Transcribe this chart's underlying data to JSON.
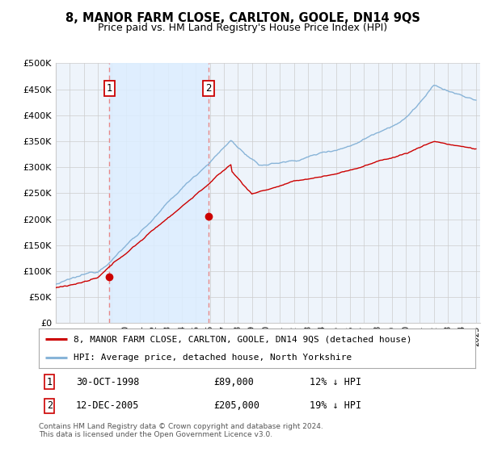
{
  "title": "8, MANOR FARM CLOSE, CARLTON, GOOLE, DN14 9QS",
  "subtitle": "Price paid vs. HM Land Registry's House Price Index (HPI)",
  "property_label": "8, MANOR FARM CLOSE, CARLTON, GOOLE, DN14 9QS (detached house)",
  "hpi_label": "HPI: Average price, detached house, North Yorkshire",
  "purchase1_date": "30-OCT-1998",
  "purchase1_price": 89000,
  "purchase1_note": "12% ↓ HPI",
  "purchase2_date": "12-DEC-2005",
  "purchase2_price": 205000,
  "purchase2_note": "19% ↓ HPI",
  "footer": "Contains HM Land Registry data © Crown copyright and database right 2024.\nThis data is licensed under the Open Government Licence v3.0.",
  "property_color": "#cc0000",
  "hpi_color": "#88b4d8",
  "vline_color": "#e88888",
  "shaded_region_color": "#ddeeff",
  "plot_bg_color": "#eef4fb",
  "ylim": [
    0,
    500000
  ],
  "yticks": [
    0,
    50000,
    100000,
    150000,
    200000,
    250000,
    300000,
    350000,
    400000,
    450000,
    500000
  ],
  "background_color": "#ffffff",
  "grid_color": "#cccccc",
  "t1": 1998.833,
  "t2": 2005.917,
  "p1": 89000,
  "p2": 205000
}
